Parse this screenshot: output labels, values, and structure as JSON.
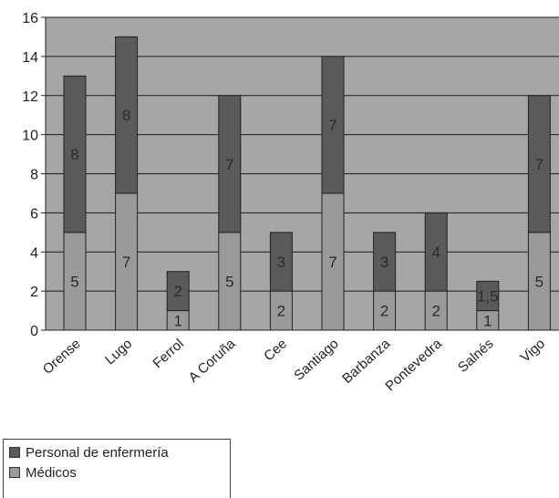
{
  "chart_data": {
    "type": "bar",
    "stacked": true,
    "categories": [
      "Orense",
      "Lugo",
      "Ferrol",
      "A Coruña",
      "Cee",
      "Santiago",
      "Barbanza",
      "Pontevedra",
      "Salnés",
      "Vigo"
    ],
    "series": [
      {
        "name": "Médicos",
        "values": [
          5,
          7,
          1,
          5,
          2,
          7,
          2,
          2,
          1,
          5
        ],
        "labels": [
          "5",
          "7",
          "1",
          "5",
          "2",
          "7",
          "2",
          "2",
          "1",
          "5"
        ],
        "color": "#9a9a9a"
      },
      {
        "name": "Personal de enfermería",
        "values": [
          8,
          8,
          2,
          7,
          3,
          7,
          3,
          4,
          1.5,
          7
        ],
        "labels": [
          "8",
          "8",
          "2",
          "7",
          "3",
          "7",
          "3",
          "4",
          "1,5",
          "7"
        ],
        "color": "#5a5a5a"
      }
    ],
    "yticks": [
      "0",
      "2",
      "4",
      "6",
      "8",
      "10",
      "12",
      "14",
      "16"
    ],
    "ylim": [
      0,
      16
    ],
    "grid": true,
    "legend_position": "bottom-left",
    "plot_background": "#a6a6a6"
  }
}
